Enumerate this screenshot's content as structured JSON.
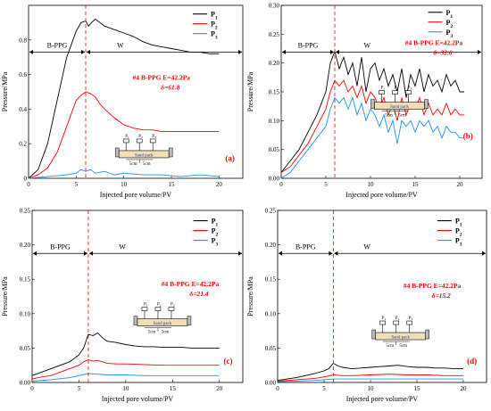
{
  "chart_data": [
    {
      "panel": "(a)",
      "type": "line",
      "xlabel": "Injected pore volume/PV",
      "ylabel": "Pressure/MPa",
      "xlim": [
        0,
        22.5
      ],
      "ylim": [
        0,
        1.0
      ],
      "x_ticks": [
        0,
        5,
        10,
        15,
        20
      ],
      "y_ticks": [
        0,
        0.2,
        0.4,
        0.6,
        0.8
      ],
      "y_tick_labels": [
        "0",
        "0.2",
        "0.4",
        "0.6",
        "0.8"
      ],
      "phase_left": "B-PPG",
      "phase_right": "W",
      "divider_x": 6,
      "annotation_line1": "#4 B-PPG  E=42.2Pa",
      "annotation_line2": "δ=61.8",
      "series": [
        {
          "name": "P1",
          "color": "#000000",
          "x": [
            0,
            1,
            2,
            3,
            4,
            5,
            5.5,
            6,
            6.3,
            6.6,
            7,
            7.5,
            8,
            9,
            10,
            11,
            12,
            13,
            14,
            15,
            16,
            17,
            18,
            19,
            20
          ],
          "y": [
            0,
            0.05,
            0.2,
            0.45,
            0.7,
            0.85,
            0.9,
            0.91,
            0.88,
            0.9,
            0.92,
            0.9,
            0.88,
            0.86,
            0.84,
            0.82,
            0.79,
            0.77,
            0.76,
            0.75,
            0.74,
            0.73,
            0.73,
            0.72,
            0.72
          ]
        },
        {
          "name": "P2",
          "color": "#ff0000",
          "x": [
            0,
            1,
            2,
            3,
            4,
            5,
            5.5,
            6,
            6.5,
            7,
            7.5,
            8,
            9,
            10,
            11,
            12,
            13,
            14,
            15,
            16,
            17,
            18,
            19,
            20
          ],
          "y": [
            0,
            0.02,
            0.06,
            0.15,
            0.3,
            0.45,
            0.48,
            0.5,
            0.49,
            0.47,
            0.43,
            0.4,
            0.35,
            0.31,
            0.29,
            0.28,
            0.28,
            0.27,
            0.27,
            0.27,
            0.27,
            0.27,
            0.27,
            0.27
          ]
        },
        {
          "name": "P3",
          "color": "#1e90ff",
          "x": [
            0,
            2,
            4,
            5,
            5.5,
            6,
            6.5,
            7,
            8,
            9,
            10,
            12,
            14,
            16,
            18,
            20
          ],
          "y": [
            0,
            0.01,
            0.02,
            0.03,
            0.05,
            0.04,
            0.05,
            0.03,
            0.04,
            0.02,
            0.03,
            0.02,
            0.02,
            0.01,
            0.02,
            0.01
          ]
        }
      ]
    },
    {
      "panel": "(b)",
      "type": "line",
      "xlabel": "Injected pore volume/PV",
      "ylabel": "Pressure/MPa",
      "xlim": [
        0,
        22.5
      ],
      "ylim": [
        0,
        0.3
      ],
      "x_ticks": [
        0,
        5,
        10,
        15,
        20
      ],
      "y_ticks": [
        0,
        0.05,
        0.1,
        0.15,
        0.2,
        0.25,
        0.3
      ],
      "y_tick_labels": [
        "0.00",
        "0.05",
        "0.10",
        "0.15",
        "0.20",
        "0.25",
        "0.30"
      ],
      "phase_left": "B-PPG",
      "phase_right": "W",
      "divider_x": 6,
      "annotation_line1": "#4 B-PPG  E=42.2Pa",
      "annotation_line2": "δ=32.0",
      "series": [
        {
          "name": "P1",
          "color": "#000000",
          "x": [
            0,
            1,
            2,
            3,
            4,
            5,
            5.5,
            6,
            6.5,
            7,
            7.5,
            8,
            8.5,
            9,
            9.5,
            10,
            10.5,
            11,
            11.5,
            12,
            12.5,
            13,
            13.5,
            14,
            14.5,
            15,
            15.5,
            16,
            16.5,
            17,
            17.5,
            18,
            18.5,
            19,
            19.5,
            20,
            20.5
          ],
          "y": [
            0.01,
            0.03,
            0.05,
            0.08,
            0.11,
            0.15,
            0.2,
            0.22,
            0.19,
            0.21,
            0.18,
            0.2,
            0.16,
            0.21,
            0.15,
            0.19,
            0.2,
            0.17,
            0.19,
            0.16,
            0.18,
            0.15,
            0.19,
            0.14,
            0.18,
            0.16,
            0.19,
            0.15,
            0.18,
            0.16,
            0.17,
            0.15,
            0.18,
            0.16,
            0.17,
            0.15,
            0.15
          ]
        },
        {
          "name": "P2",
          "color": "#ff0000",
          "x": [
            0,
            1,
            2,
            3,
            4,
            5,
            5.5,
            6,
            6.5,
            7,
            7.5,
            8,
            8.5,
            9,
            9.5,
            10,
            10.5,
            11,
            11.5,
            12,
            12.5,
            13,
            13.5,
            14,
            14.5,
            15,
            15.5,
            16,
            16.5,
            17,
            17.5,
            18,
            18.5,
            19,
            19.5,
            20,
            20.5
          ],
          "y": [
            0.01,
            0.02,
            0.04,
            0.06,
            0.09,
            0.12,
            0.15,
            0.17,
            0.16,
            0.17,
            0.15,
            0.16,
            0.14,
            0.16,
            0.13,
            0.15,
            0.14,
            0.12,
            0.14,
            0.11,
            0.13,
            0.1,
            0.14,
            0.11,
            0.13,
            0.12,
            0.14,
            0.11,
            0.13,
            0.11,
            0.12,
            0.11,
            0.13,
            0.11,
            0.12,
            0.11,
            0.11
          ]
        },
        {
          "name": "P3",
          "color": "#1e90ff",
          "x": [
            0,
            1,
            2,
            3,
            4,
            5,
            5.5,
            6,
            6.5,
            7,
            7.5,
            8,
            8.5,
            9,
            9.5,
            10,
            10.5,
            11,
            11.5,
            12,
            12.5,
            13,
            13.5,
            14,
            14.5,
            15,
            15.5,
            16,
            16.5,
            17,
            17.5,
            18,
            18.5,
            19,
            19.5,
            20,
            20.5
          ],
          "y": [
            0.0,
            0.01,
            0.03,
            0.05,
            0.07,
            0.09,
            0.12,
            0.14,
            0.13,
            0.14,
            0.12,
            0.14,
            0.11,
            0.13,
            0.1,
            0.12,
            0.11,
            0.09,
            0.11,
            0.08,
            0.1,
            0.06,
            0.1,
            0.09,
            0.1,
            0.08,
            0.1,
            0.09,
            0.1,
            0.08,
            0.09,
            0.07,
            0.09,
            0.08,
            0.08,
            0.07,
            0.07
          ]
        }
      ]
    },
    {
      "panel": "(c)",
      "type": "line",
      "xlabel": "Injected pore volume/PV",
      "ylabel": "Pressure/MPa",
      "xlim": [
        0,
        22.5
      ],
      "ylim": [
        0,
        0.25
      ],
      "x_ticks": [
        0,
        5,
        10,
        15,
        20
      ],
      "y_ticks": [
        0,
        0.05,
        0.1,
        0.15,
        0.2,
        0.25
      ],
      "y_tick_labels": [
        "0.00",
        "0.05",
        "0.10",
        "0.15",
        "0.20",
        "0.25"
      ],
      "phase_left": "B-PPG",
      "phase_right": "W",
      "divider_x": 6,
      "annotation_line1": "#4 B-PPG  E=42.2Pa",
      "annotation_line2": "δ=21.4",
      "series": [
        {
          "name": "P1",
          "color": "#000000",
          "x": [
            0,
            1,
            2,
            3,
            4,
            5,
            5.5,
            6,
            6.5,
            7,
            7.5,
            8,
            9,
            10,
            11,
            12,
            13,
            14,
            15,
            16,
            17,
            18,
            19,
            20
          ],
          "y": [
            0.01,
            0.015,
            0.02,
            0.025,
            0.03,
            0.04,
            0.05,
            0.07,
            0.068,
            0.072,
            0.065,
            0.06,
            0.058,
            0.055,
            0.053,
            0.052,
            0.052,
            0.051,
            0.051,
            0.051,
            0.05,
            0.05,
            0.05,
            0.05
          ]
        },
        {
          "name": "P2",
          "color": "#ff0000",
          "x": [
            0,
            1,
            2,
            3,
            4,
            5,
            5.5,
            6,
            6.5,
            7,
            7.5,
            8,
            9,
            10,
            12,
            14,
            16,
            18,
            20
          ],
          "y": [
            0.005,
            0.008,
            0.01,
            0.015,
            0.02,
            0.025,
            0.03,
            0.033,
            0.031,
            0.032,
            0.03,
            0.028,
            0.027,
            0.027,
            0.026,
            0.025,
            0.025,
            0.025,
            0.025
          ]
        },
        {
          "name": "P3",
          "color": "#1e90ff",
          "x": [
            0,
            2,
            4,
            5,
            6,
            7,
            8,
            10,
            12,
            14,
            16,
            18,
            20
          ],
          "y": [
            0.002,
            0.004,
            0.007,
            0.01,
            0.013,
            0.012,
            0.011,
            0.011,
            0.01,
            0.01,
            0.01,
            0.01,
            0.01
          ]
        }
      ]
    },
    {
      "panel": "(d)",
      "type": "line",
      "xlabel": "Injected pore volume/PV",
      "ylabel": "Pressure/MPa",
      "xlim": [
        0,
        22.5
      ],
      "ylim": [
        0,
        0.25
      ],
      "x_ticks": [
        0,
        5,
        10,
        15,
        20
      ],
      "y_ticks": [
        0,
        0.05,
        0.1,
        0.15,
        0.2,
        0.25
      ],
      "y_tick_labels": [
        "0.00",
        "0.05",
        "0.10",
        "0.15",
        "0.20",
        "0.25"
      ],
      "phase_left": "B-PPG",
      "phase_right": "W",
      "divider_x": 6,
      "annotation_line1": "#4 B-PPG  E=42.2Pa",
      "annotation_line2": "δ=15.2",
      "series": [
        {
          "name": "P1",
          "color": "#000000",
          "x": [
            0,
            1,
            2,
            3,
            4,
            5,
            5.5,
            6,
            6.5,
            7,
            8,
            9,
            10,
            11,
            12,
            13,
            14,
            15,
            16,
            17,
            18,
            19,
            20
          ],
          "y": [
            0.003,
            0.005,
            0.007,
            0.01,
            0.013,
            0.017,
            0.02,
            0.028,
            0.024,
            0.022,
            0.02,
            0.021,
            0.022,
            0.023,
            0.024,
            0.025,
            0.023,
            0.022,
            0.022,
            0.021,
            0.021,
            0.02,
            0.02
          ]
        },
        {
          "name": "P2",
          "color": "#ff0000",
          "x": [
            0,
            2,
            4,
            5,
            6,
            7,
            8,
            10,
            12,
            14,
            16,
            18,
            20
          ],
          "y": [
            0.002,
            0.004,
            0.006,
            0.008,
            0.011,
            0.01,
            0.01,
            0.011,
            0.012,
            0.011,
            0.011,
            0.01,
            0.01
          ]
        },
        {
          "name": "P3",
          "color": "#1e90ff",
          "x": [
            0,
            2,
            4,
            6,
            8,
            10,
            12,
            14,
            16,
            18,
            20
          ],
          "y": [
            0.001,
            0.002,
            0.003,
            0.005,
            0.005,
            0.005,
            0.005,
            0.005,
            0.005,
            0.005,
            0.005
          ]
        }
      ]
    }
  ]
}
